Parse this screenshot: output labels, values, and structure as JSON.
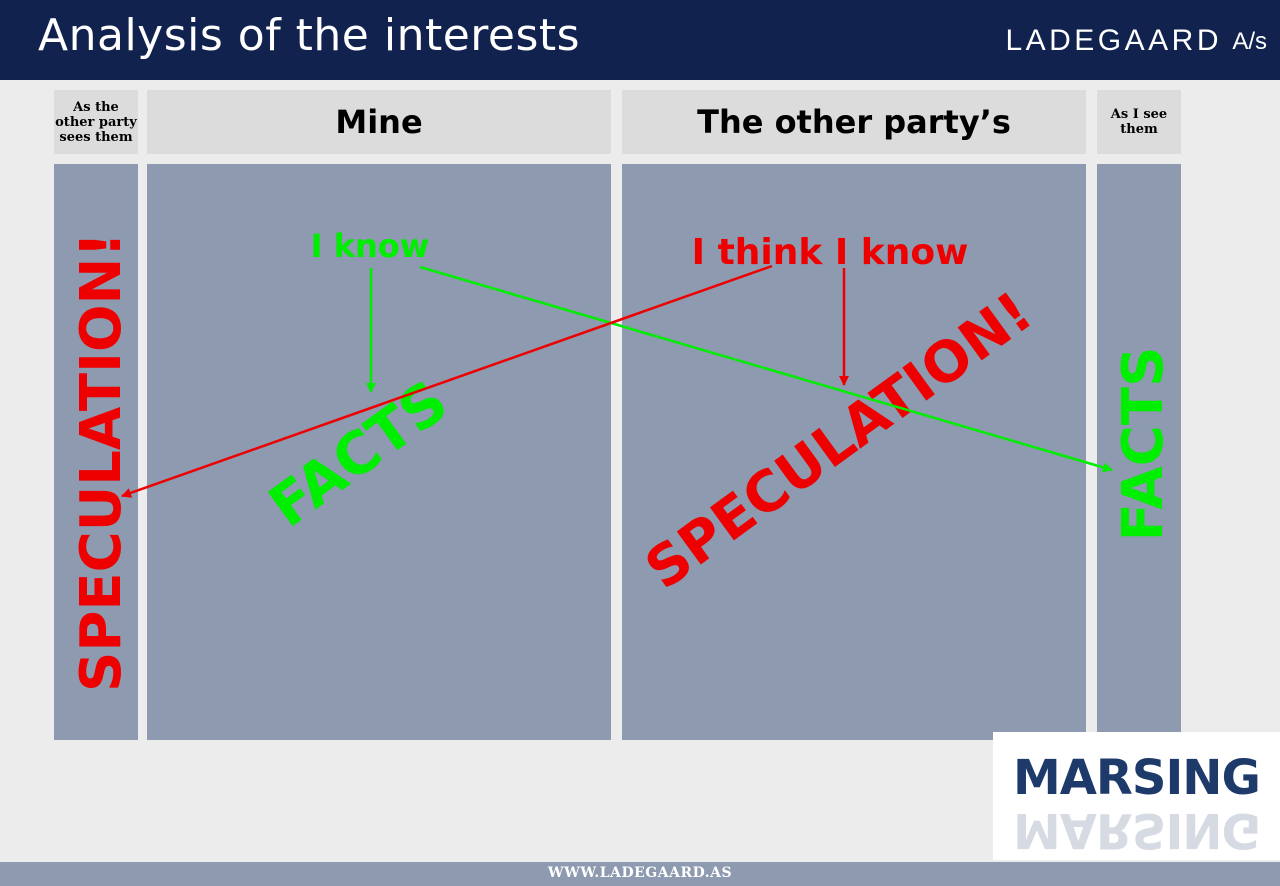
{
  "header": {
    "title": "Analysis of the interests",
    "brand": "LADEGAARD",
    "brand_suffix": "A/s"
  },
  "columns": [
    {
      "heading": "As the other party sees them"
    },
    {
      "heading": "Mine"
    },
    {
      "heading": "The other party’s"
    },
    {
      "heading": "As I see them"
    }
  ],
  "diagram": {
    "i_know": "I know",
    "i_think_i_know": "I think I know",
    "facts_mine": "FACTS",
    "speculation_other": "SPECULATION!",
    "speculation_left": "SPECULATION!",
    "facts_right": "FACTS",
    "colors": {
      "green": "#00ee00",
      "red": "#ee0000",
      "panel": "#8d9ab0",
      "header_bg": "#12224f"
    }
  },
  "logo": {
    "name": "MARSING"
  },
  "footer": {
    "url": "WWW.LADEGAARD.AS"
  }
}
